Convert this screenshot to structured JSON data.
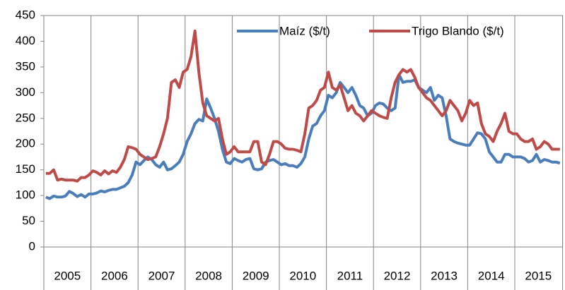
{
  "chart_data": {
    "type": "line",
    "categories": [
      "2005",
      null,
      null,
      null,
      null,
      null,
      null,
      null,
      null,
      null,
      null,
      null,
      "2006",
      null,
      null,
      null,
      null,
      null,
      null,
      null,
      null,
      null,
      null,
      null,
      "2007",
      null,
      null,
      null,
      null,
      null,
      null,
      null,
      null,
      null,
      null,
      null,
      "2008",
      null,
      null,
      null,
      null,
      null,
      null,
      null,
      null,
      null,
      null,
      null,
      "2009",
      null,
      null,
      null,
      null,
      null,
      null,
      null,
      null,
      null,
      null,
      null,
      "2010",
      null,
      null,
      null,
      null,
      null,
      null,
      null,
      null,
      null,
      null,
      null,
      "2011",
      null,
      null,
      null,
      null,
      null,
      null,
      null,
      null,
      null,
      null,
      null,
      "2012",
      null,
      null,
      null,
      null,
      null,
      null,
      null,
      null,
      null,
      null,
      null,
      "2013",
      null,
      null,
      null,
      null,
      null,
      null,
      null,
      null,
      null,
      null,
      null,
      "2014",
      null,
      null,
      null,
      null,
      null,
      null,
      null,
      null,
      null,
      null,
      null,
      "2015",
      null,
      null,
      null,
      null,
      null,
      null,
      null,
      null,
      null,
      null,
      null
    ],
    "series": [
      {
        "name": "Maíz ($/t)",
        "color": "#4a7ebb",
        "values": [
          97,
          94,
          99,
          97,
          97,
          99,
          108,
          104,
          98,
          102,
          97,
          103,
          103,
          105,
          109,
          107,
          110,
          112,
          112,
          115,
          118,
          125,
          140,
          165,
          160,
          168,
          175,
          170,
          160,
          155,
          165,
          150,
          152,
          158,
          165,
          180,
          205,
          220,
          240,
          248,
          245,
          288,
          270,
          250,
          225,
          190,
          165,
          162,
          172,
          168,
          165,
          170,
          172,
          152,
          150,
          152,
          165,
          168,
          170,
          165,
          160,
          162,
          158,
          158,
          155,
          162,
          175,
          210,
          235,
          240,
          255,
          265,
          295,
          290,
          300,
          320,
          310,
          300,
          310,
          295,
          275,
          270,
          255,
          260,
          275,
          280,
          278,
          270,
          265,
          270,
          335,
          320,
          322,
          322,
          325,
          310,
          305,
          300,
          310,
          285,
          295,
          290,
          255,
          210,
          205,
          202,
          200,
          198,
          198,
          210,
          222,
          220,
          210,
          185,
          175,
          165,
          165,
          180,
          180,
          175,
          175,
          175,
          172,
          165,
          168,
          180,
          165,
          170,
          168,
          165,
          165,
          163
        ]
      },
      {
        "name": "Trigo Blando ($/t)",
        "color": "#be4b48",
        "values": [
          143,
          143,
          150,
          130,
          132,
          130,
          130,
          130,
          128,
          135,
          135,
          140,
          148,
          145,
          140,
          148,
          142,
          148,
          145,
          155,
          170,
          195,
          193,
          190,
          180,
          175,
          170,
          172,
          175,
          195,
          220,
          250,
          320,
          325,
          310,
          340,
          345,
          370,
          420,
          340,
          280,
          255,
          250,
          245,
          250,
          210,
          180,
          185,
          195,
          185,
          185,
          185,
          185,
          205,
          205,
          165,
          160,
          180,
          205,
          205,
          200,
          192,
          190,
          190,
          188,
          185,
          220,
          270,
          275,
          285,
          305,
          310,
          340,
          310,
          305,
          315,
          290,
          265,
          275,
          260,
          255,
          245,
          255,
          265,
          260,
          255,
          252,
          250,
          290,
          320,
          335,
          345,
          340,
          345,
          330,
          310,
          300,
          290,
          285,
          275,
          265,
          255,
          265,
          285,
          275,
          265,
          245,
          260,
          285,
          275,
          280,
          240,
          220,
          215,
          205,
          225,
          240,
          260,
          225,
          220,
          220,
          210,
          205,
          205,
          210,
          190,
          195,
          205,
          200,
          190,
          190,
          190
        ]
      }
    ],
    "ylim": [
      0,
      450
    ],
    "yticks": [
      0,
      50,
      100,
      150,
      200,
      250,
      300,
      350,
      400,
      450
    ],
    "legend": "top-right"
  }
}
